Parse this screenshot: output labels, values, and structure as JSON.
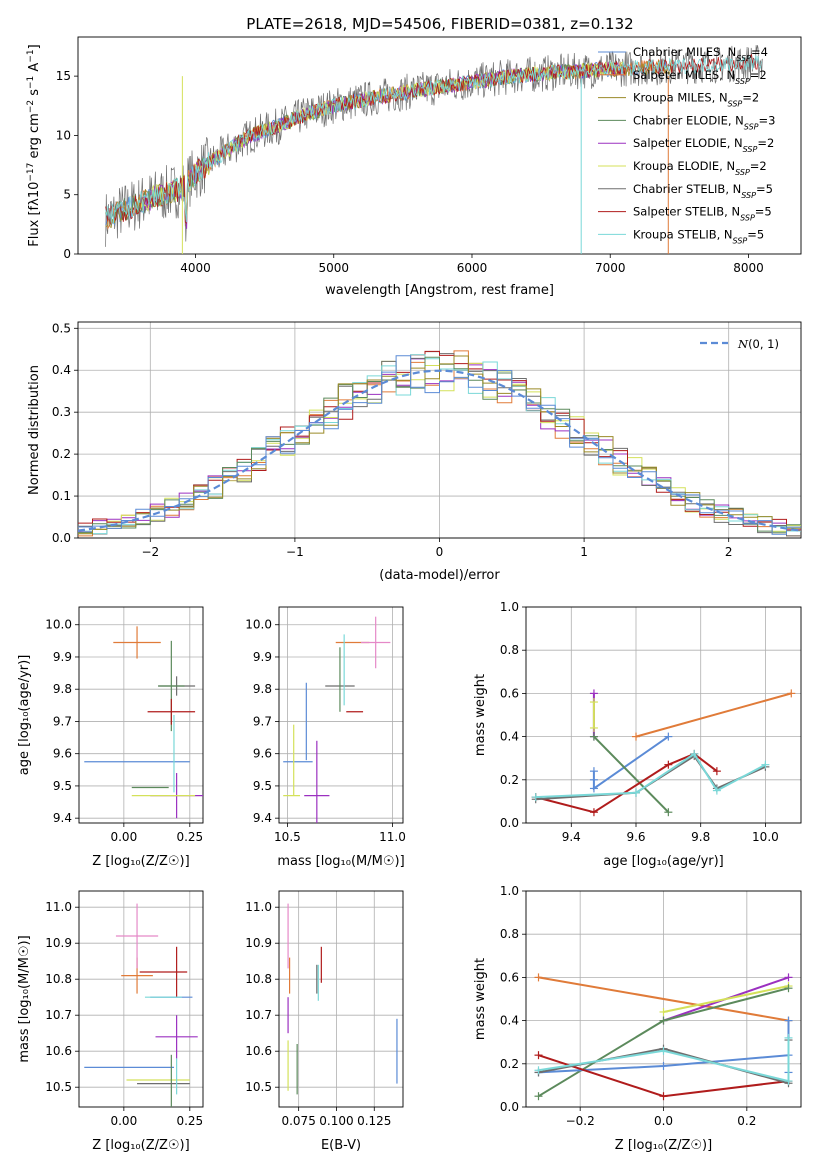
{
  "title": "PLATE=2618, MJD=54506, FIBERID=0381, z=0.132",
  "colors": [
    "#5b8bd6",
    "#e07b39",
    "#9a8a28",
    "#5c8a5c",
    "#9b30c0",
    "#d4e15a",
    "#6e6e6e",
    "#b01c1c",
    "#7ad8d8"
  ],
  "pink": "#e589c8",
  "chart_data": [
    {
      "type": "line",
      "id": "spectrum",
      "xlabel": "wavelength [Angstrom, rest frame]",
      "ylabel": "Flux [f_λ10^-17 erg cm^-2 s^-1 A^-1]",
      "xlim": [
        3150,
        8380
      ],
      "ylim": [
        0,
        18.3
      ],
      "xticks": [
        4000,
        5000,
        6000,
        7000,
        8000
      ],
      "yticks": [
        0,
        5,
        10,
        15
      ],
      "legend_position": "top-right",
      "series": [
        {
          "name": "Chabrier MILES, N_SSP=4",
          "base": "N",
          "sub": "SSP",
          "rest": "=4",
          "prefix": "Chabrier MILES, "
        },
        {
          "name": "Salpeter MILES, N_SSP=2",
          "base": "N",
          "sub": "SSP",
          "rest": "=2",
          "prefix": "Salpeter MILES, "
        },
        {
          "name": "Kroupa MILES, N_SSP=2",
          "base": "N",
          "sub": "SSP",
          "rest": "=2",
          "prefix": "Kroupa MILES, "
        },
        {
          "name": "Chabrier ELODIE, N_SSP=3",
          "base": "N",
          "sub": "SSP",
          "rest": "=3",
          "prefix": "Chabrier ELODIE, "
        },
        {
          "name": "Salpeter ELODIE, N_SSP=2",
          "base": "N",
          "sub": "SSP",
          "rest": "=2",
          "prefix": "Salpeter ELODIE, "
        },
        {
          "name": "Kroupa ELODIE, N_SSP=2",
          "base": "N",
          "sub": "SSP",
          "rest": "=2",
          "prefix": "Kroupa ELODIE, "
        },
        {
          "name": "Chabrier STELIB, N_SSP=5",
          "base": "N",
          "sub": "SSP",
          "rest": "=5",
          "prefix": "Chabrier STELIB, "
        },
        {
          "name": "Salpeter STELIB, N_SSP=5",
          "base": "N",
          "sub": "SSP",
          "rest": "=5",
          "prefix": "Salpeter STELIB, "
        },
        {
          "name": "Kroupa STELIB, N_SSP=5",
          "base": "N",
          "sub": "SSP",
          "rest": "=5",
          "prefix": "Kroupa STELIB, "
        }
      ],
      "continuum": {
        "x": [
          3350,
          3500,
          3700,
          3900,
          4000,
          4200,
          4400,
          4600,
          4800,
          5000,
          5300,
          5600,
          6000,
          6300,
          6600,
          7000,
          7400,
          7800,
          8100
        ],
        "y": [
          3.0,
          3.8,
          4.8,
          5.5,
          6.8,
          8.5,
          10.0,
          10.8,
          11.8,
          12.5,
          13.2,
          13.8,
          14.5,
          15.0,
          15.3,
          15.6,
          15.8,
          16.0,
          16.2
        ]
      }
    },
    {
      "type": "line",
      "id": "residuals",
      "xlabel": "(data-model)/error",
      "ylabel": "Normed distribution",
      "xlim": [
        -2.5,
        2.5
      ],
      "ylim": [
        0,
        0.515
      ],
      "xticks": [
        -2,
        -1,
        0,
        1,
        2
      ],
      "yticks": [
        0.0,
        0.1,
        0.2,
        0.3,
        0.4,
        0.5
      ],
      "legend": "N(0,1)",
      "bin_width": 0.1,
      "bins_from": -2.5,
      "bins_to": 2.5
    },
    {
      "type": "scatter",
      "id": "age_vs_Z",
      "xlabel": "Z [log10(Z/Z☉)]",
      "ylabel": "age  [log10(age/yr)]",
      "xlim": [
        -0.17,
        0.3
      ],
      "ylim": [
        9.385,
        10.055
      ],
      "xticks": [
        0.0,
        0.25
      ],
      "yticks": [
        9.4,
        9.5,
        9.6,
        9.7,
        9.8,
        9.9,
        10.0
      ],
      "points": [
        {
          "c": 0,
          "x": 0.05,
          "y": 9.575,
          "xe": 0.2,
          "ye": 0.0
        },
        {
          "c": 1,
          "x": 0.05,
          "y": 9.945,
          "xe": 0.09,
          "ye": 0.05
        },
        {
          "c": 6,
          "x": 0.2,
          "y": 9.81,
          "xe": 0.07,
          "ye": 0.03
        },
        {
          "c": 3,
          "x": 0.18,
          "y": 9.81,
          "xe": 0.05,
          "ye": 0.14
        },
        {
          "c": 3,
          "x": 0.1,
          "y": 9.495,
          "xe": 0.07,
          "ye": 0.0
        },
        {
          "c": 7,
          "x": 0.18,
          "y": 9.73,
          "xe": 0.09,
          "ye": 0.04
        },
        {
          "c": 4,
          "x": 0.2,
          "y": 9.47,
          "xe": 0.1,
          "ye": 0.07
        },
        {
          "c": 5,
          "x": 0.15,
          "y": 9.47,
          "xe": 0.12,
          "ye": 0.0
        },
        {
          "c": 8,
          "x": 0.19,
          "y": 9.6,
          "xe": 0.0,
          "ye": 0.12
        }
      ]
    },
    {
      "type": "scatter",
      "id": "age_vs_mass",
      "xlabel": "mass [log10(M/M☉)]",
      "ylabel": "",
      "xlim": [
        10.46,
        11.05
      ],
      "ylim": [
        9.385,
        10.055
      ],
      "xticks": [
        10.5,
        11.0
      ],
      "yticks": [
        9.4,
        9.5,
        9.6,
        9.7,
        9.8,
        9.9,
        10.0
      ],
      "points": [
        {
          "c": 0,
          "x": 10.55,
          "y": 9.575,
          "xe": 0.07,
          "ye": 0.0
        },
        {
          "c": 0,
          "x": 10.59,
          "y": 9.7,
          "xe": 0.0,
          "ye": 0.12
        },
        {
          "c": 1,
          "x": 10.81,
          "y": 9.945,
          "xe": 0.08,
          "ye": 0.0
        },
        {
          "c": 9,
          "x": 10.92,
          "y": 9.945,
          "xe": 0.07,
          "ye": 0.08
        },
        {
          "c": 6,
          "x": 10.75,
          "y": 9.81,
          "xe": 0.07,
          "ye": 0.0
        },
        {
          "c": 3,
          "x": 10.75,
          "y": 9.83,
          "xe": 0.0,
          "ye": 0.1
        },
        {
          "c": 7,
          "x": 10.82,
          "y": 9.73,
          "xe": 0.04,
          "ye": 0.0
        },
        {
          "c": 4,
          "x": 10.64,
          "y": 9.47,
          "xe": 0.06,
          "ye": 0.17
        },
        {
          "c": 5,
          "x": 10.52,
          "y": 9.47,
          "xe": 0.04,
          "ye": 0.0
        },
        {
          "c": 5,
          "x": 10.53,
          "y": 9.58,
          "xe": 0.0,
          "ye": 0.11
        },
        {
          "c": 8,
          "x": 10.77,
          "y": 9.86,
          "xe": 0.0,
          "ye": 0.11
        }
      ]
    },
    {
      "type": "line",
      "id": "massweight_vs_age",
      "xlabel": "age  [log10(age/yr)]",
      "ylabel": "mass weight",
      "xlim": [
        9.26,
        10.11
      ],
      "ylim": [
        0,
        1.0
      ],
      "xticks": [
        9.4,
        9.6,
        9.8,
        10.0
      ],
      "yticks": [
        0.0,
        0.2,
        0.4,
        0.6,
        0.8,
        1.0
      ],
      "series": [
        {
          "c": 1,
          "x": [
            9.6,
            10.08
          ],
          "y": [
            0.4,
            0.6
          ]
        },
        {
          "c": 0,
          "x": [
            9.47,
            9.47,
            9.47,
            9.7
          ],
          "y": [
            0.24,
            0.2,
            0.16,
            0.4
          ]
        },
        {
          "c": 4,
          "x": [
            9.47,
            9.47
          ],
          "y": [
            0.4,
            0.6
          ]
        },
        {
          "c": 5,
          "x": [
            9.47,
            9.47
          ],
          "y": [
            0.44,
            0.56
          ]
        },
        {
          "c": 3,
          "x": [
            9.47,
            9.7
          ],
          "y": [
            0.4,
            0.05
          ]
        },
        {
          "c": 7,
          "x": [
            9.29,
            9.47,
            9.7,
            9.78,
            9.85
          ],
          "y": [
            0.12,
            0.05,
            0.27,
            0.32,
            0.24
          ]
        },
        {
          "c": 6,
          "x": [
            9.29,
            9.6,
            9.78,
            9.85,
            10.0
          ],
          "y": [
            0.11,
            0.14,
            0.31,
            0.16,
            0.26
          ]
        },
        {
          "c": 8,
          "x": [
            9.29,
            9.6,
            9.78,
            9.85,
            10.0
          ],
          "y": [
            0.12,
            0.14,
            0.32,
            0.15,
            0.27
          ]
        }
      ]
    },
    {
      "type": "scatter",
      "id": "mass_vs_Z",
      "xlabel": "Z [log10(Z/Z☉)]",
      "ylabel": "mass [log10(M/M☉)]",
      "xlim": [
        -0.17,
        0.3
      ],
      "ylim": [
        10.445,
        11.045
      ],
      "xticks": [
        0.0,
        0.25
      ],
      "yticks": [
        10.5,
        10.6,
        10.7,
        10.8,
        10.9,
        11.0
      ],
      "points": [
        {
          "c": 0,
          "x": 0.02,
          "y": 10.555,
          "xe": 0.17,
          "ye": 0.0
        },
        {
          "c": 1,
          "x": 0.05,
          "y": 10.81,
          "xe": 0.06,
          "ye": 0.05
        },
        {
          "c": 9,
          "x": 0.05,
          "y": 10.92,
          "xe": 0.08,
          "ye": 0.09
        },
        {
          "c": 7,
          "x": 0.15,
          "y": 10.82,
          "xe": 0.09,
          "ye": 0.0
        },
        {
          "c": 7,
          "x": 0.2,
          "y": 10.82,
          "xe": 0.0,
          "ye": 0.07
        },
        {
          "c": 0,
          "x": 0.18,
          "y": 10.75,
          "xe": 0.08,
          "ye": 0.0
        },
        {
          "c": 8,
          "x": 0.15,
          "y": 10.75,
          "xe": 0.07,
          "ye": 0.0
        },
        {
          "c": 4,
          "x": 0.2,
          "y": 10.64,
          "xe": 0.08,
          "ye": 0.06
        },
        {
          "c": 5,
          "x": 0.13,
          "y": 10.52,
          "xe": 0.12,
          "ye": 0.0
        },
        {
          "c": 3,
          "x": 0.18,
          "y": 10.51,
          "xe": 0.0,
          "ye": 0.08
        },
        {
          "c": 6,
          "x": 0.15,
          "y": 10.51,
          "xe": 0.1,
          "ye": 0.0
        },
        {
          "c": 8,
          "x": 0.2,
          "y": 10.53,
          "xe": 0.0,
          "ye": 0.05
        }
      ]
    },
    {
      "type": "scatter",
      "id": "mass_vs_EBV",
      "xlabel": "E(B-V)",
      "ylabel": "",
      "xlim": [
        0.062,
        0.144
      ],
      "ylim": [
        10.445,
        11.045
      ],
      "xticks": [
        0.075,
        0.1,
        0.125
      ],
      "xticklabels": [
        "0.075",
        "0.100",
        "0.125"
      ],
      "yticks": [
        10.5,
        10.6,
        10.7,
        10.8,
        10.9,
        11.0
      ],
      "points": [
        {
          "c": 9,
          "x": 0.068,
          "y": 10.92,
          "xe": 0.0,
          "ye": 0.09
        },
        {
          "c": 1,
          "x": 0.069,
          "y": 10.81,
          "xe": 0.0,
          "ye": 0.05
        },
        {
          "c": 4,
          "x": 0.068,
          "y": 10.7,
          "xe": 0.0,
          "ye": 0.05
        },
        {
          "c": 5,
          "x": 0.068,
          "y": 10.56,
          "xe": 0.0,
          "ye": 0.07
        },
        {
          "c": 3,
          "x": 0.074,
          "y": 10.55,
          "xe": 0.0,
          "ye": 0.07
        },
        {
          "c": 6,
          "x": 0.087,
          "y": 10.8,
          "xe": 0.0,
          "ye": 0.04
        },
        {
          "c": 8,
          "x": 0.088,
          "y": 10.79,
          "xe": 0.0,
          "ye": 0.05
        },
        {
          "c": 7,
          "x": 0.09,
          "y": 10.84,
          "xe": 0.0,
          "ye": 0.05
        },
        {
          "c": 0,
          "x": 0.14,
          "y": 10.6,
          "xe": 0.0,
          "ye": 0.09
        }
      ]
    },
    {
      "type": "line",
      "id": "massweight_vs_Z",
      "xlabel": "Z [log10(Z/Z☉)]",
      "ylabel": "mass weight",
      "xlim": [
        -0.33,
        0.33
      ],
      "ylim": [
        0,
        1.0
      ],
      "xticks": [
        -0.2,
        0.0,
        0.2
      ],
      "xticklabels": [
        "−0.2",
        "0.0",
        "0.2"
      ],
      "yticks": [
        0.0,
        0.2,
        0.4,
        0.6,
        0.8,
        1.0
      ],
      "series": [
        {
          "c": 1,
          "x": [
            -0.3,
            0.3
          ],
          "y": [
            0.6,
            0.4
          ]
        },
        {
          "c": 4,
          "x": [
            0.0,
            0.3
          ],
          "y": [
            0.4,
            0.6
          ]
        },
        {
          "c": 5,
          "x": [
            0.0,
            0.3
          ],
          "y": [
            0.44,
            0.56
          ]
        },
        {
          "c": 3,
          "x": [
            -0.3,
            0.0,
            0.3
          ],
          "y": [
            0.05,
            0.4,
            0.55
          ]
        },
        {
          "c": 0,
          "x": [
            -0.3,
            0.0,
            0.3,
            0.3,
            0.3
          ],
          "y": [
            0.16,
            0.19,
            0.24,
            0.4,
            0.16
          ]
        },
        {
          "c": 7,
          "x": [
            -0.3,
            0.0,
            0.3
          ],
          "y": [
            0.24,
            0.05,
            0.12
          ]
        },
        {
          "c": 6,
          "x": [
            -0.3,
            0.0,
            0.3,
            0.3
          ],
          "y": [
            0.16,
            0.27,
            0.11,
            0.31
          ]
        },
        {
          "c": 8,
          "x": [
            -0.3,
            0.0,
            0.3,
            0.3
          ],
          "y": [
            0.17,
            0.26,
            0.12,
            0.32
          ]
        }
      ]
    }
  ]
}
